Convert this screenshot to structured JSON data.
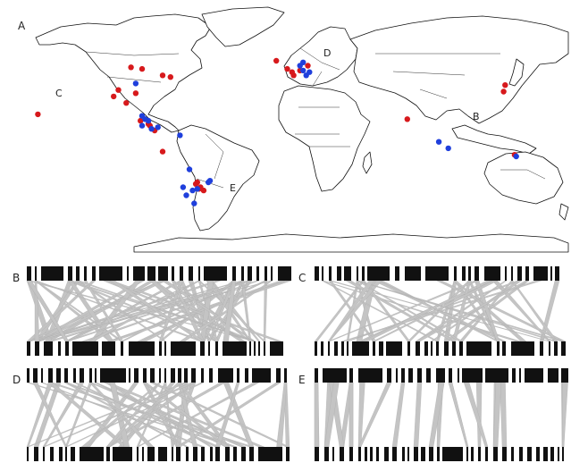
{
  "panels": {
    "map_label": "A",
    "B": "B",
    "C": "C",
    "D": "D",
    "E": "E"
  },
  "map_labels": [
    "C",
    "D",
    "B",
    "E"
  ],
  "colors": {
    "red": "#d7191c",
    "blue": "#1f3fdc",
    "bar": "#111111",
    "link": "#c4c4c4",
    "land_stroke": "#111111"
  },
  "sites": {
    "red": [
      [
        -97,
        49
      ],
      [
        -90,
        48
      ],
      [
        -77,
        44
      ],
      [
        -72,
        43
      ],
      [
        -105,
        35
      ],
      [
        -94,
        33
      ],
      [
        -100,
        27
      ],
      [
        -108,
        31
      ],
      [
        -85,
        13
      ],
      [
        -82,
        10
      ],
      [
        -86,
        14
      ],
      [
        -77,
        -3
      ],
      [
        -156,
        20
      ],
      [
        -55,
        -22
      ],
      [
        -56,
        -23
      ],
      [
        -53,
        -25
      ],
      [
        -54,
        -26
      ],
      [
        -51,
        -27
      ],
      [
        -5,
        53
      ],
      [
        2,
        48
      ],
      [
        5,
        46
      ],
      [
        6,
        44
      ],
      [
        10,
        47
      ],
      [
        15,
        50
      ],
      [
        78,
        17
      ],
      [
        140,
        38
      ],
      [
        139,
        34
      ],
      [
        146,
        -5
      ],
      [
        -91,
        16
      ]
    ],
    "blue": [
      [
        -94,
        39
      ],
      [
        -90,
        19
      ],
      [
        -88,
        17
      ],
      [
        -86,
        16
      ],
      [
        -90,
        13
      ],
      [
        -84,
        11
      ],
      [
        -66,
        7
      ],
      [
        -60,
        -14
      ],
      [
        -58,
        -27
      ],
      [
        -48,
        -22
      ],
      [
        -47,
        -21
      ],
      [
        -62,
        -30
      ],
      [
        -55,
        -26
      ],
      [
        -57,
        -35
      ],
      [
        10,
        50
      ],
      [
        12,
        47
      ],
      [
        14,
        44
      ],
      [
        16,
        46
      ],
      [
        12,
        52
      ],
      [
        98,
        3
      ],
      [
        104,
        -1
      ],
      [
        147,
        -6
      ],
      [
        -80,
        12
      ],
      [
        -64,
        -25
      ]
    ]
  },
  "bipartite": {
    "B": {
      "top_pattern": 7,
      "bottom_pattern": 3,
      "links": 64
    },
    "C": {
      "top_pattern": 2,
      "bottom_pattern": 4,
      "links": 40
    },
    "D": {
      "top_pattern": 5,
      "bottom_pattern": 6,
      "links": 44
    },
    "E": {
      "top_pattern": 8,
      "bottom_pattern": 9,
      "links": 24
    }
  }
}
